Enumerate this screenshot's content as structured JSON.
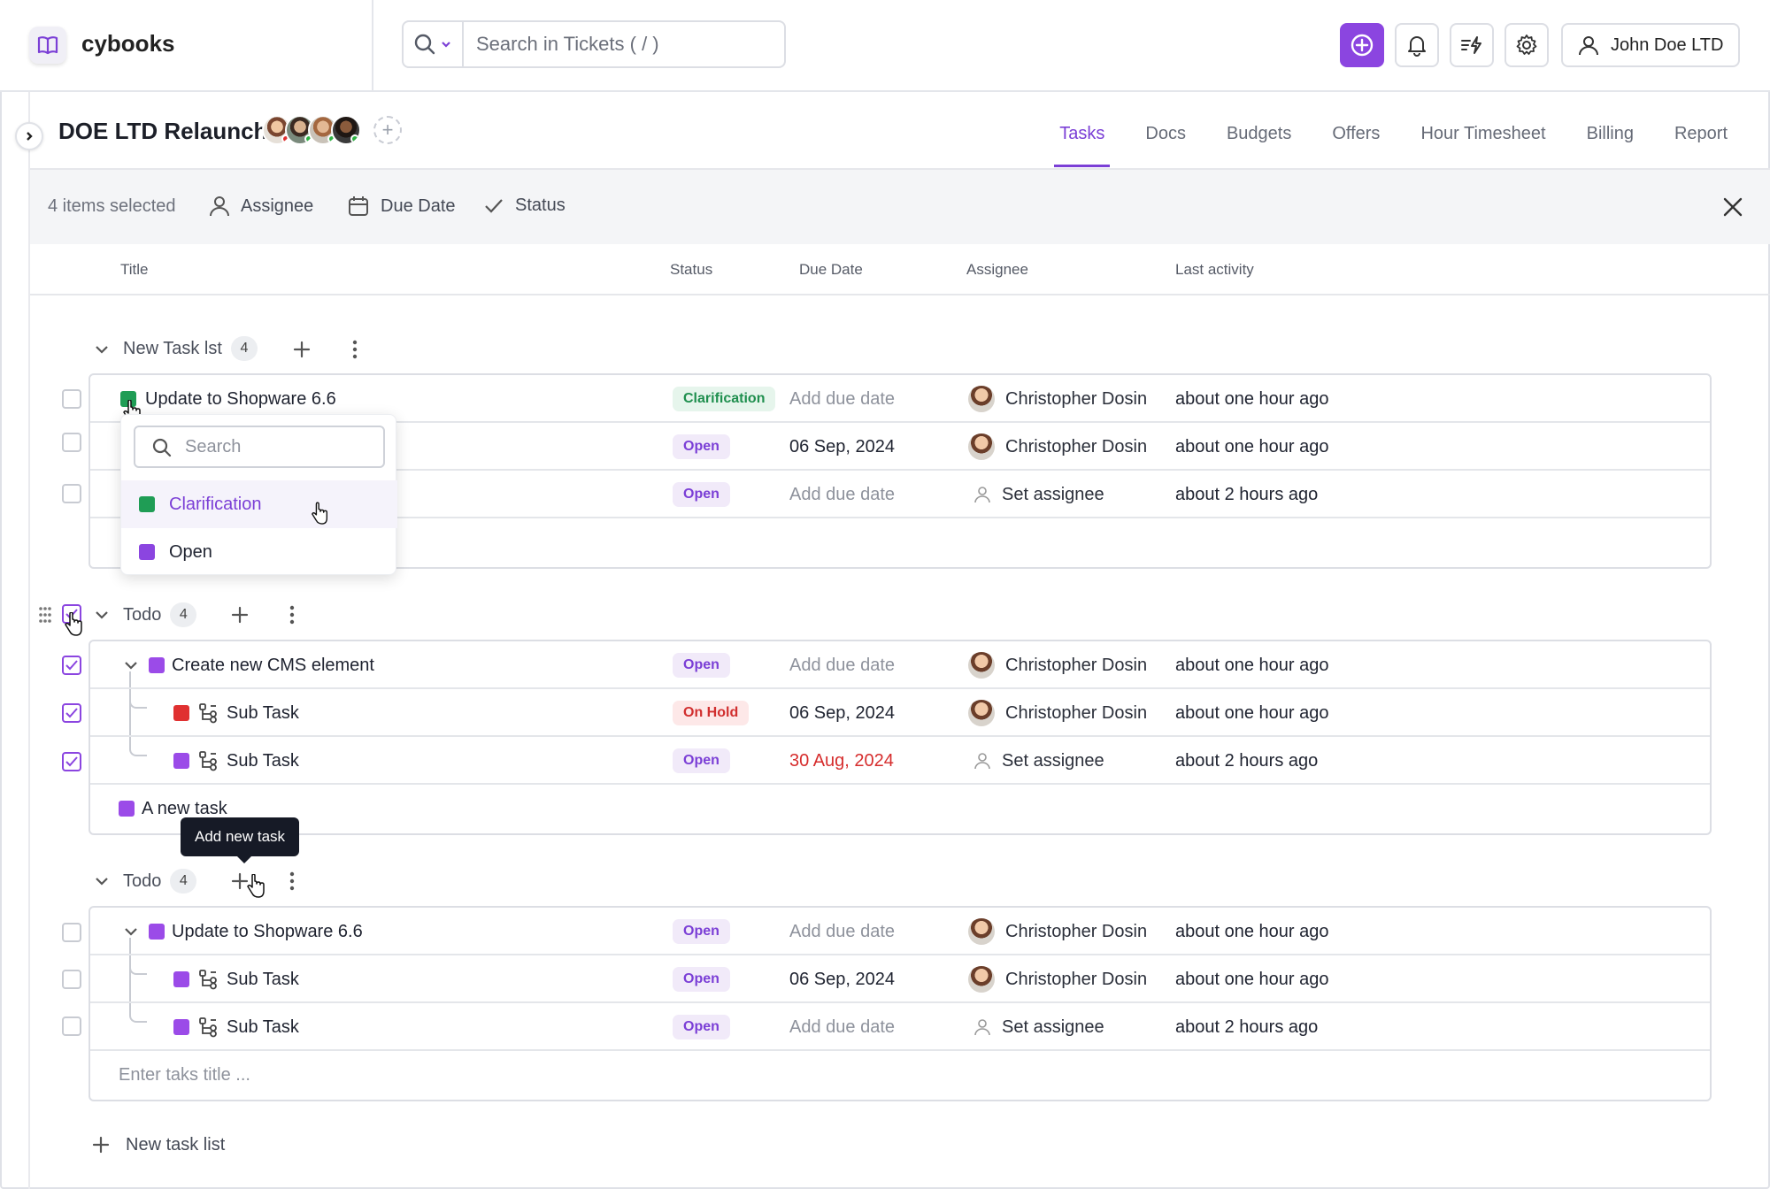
{
  "app": {
    "brand": "cybooks"
  },
  "search": {
    "placeholder": "Search in Tickets ( / )"
  },
  "user": {
    "name": "John Doe LTD"
  },
  "project": {
    "title": "DOE LTD Relaunch",
    "tabs": [
      "Tasks",
      "Docs",
      "Budgets",
      "Offers",
      "Hour Timesheet",
      "Billing",
      "Report"
    ],
    "active_tab": "Tasks"
  },
  "selection": {
    "count_label": "4 items selected",
    "actions": [
      "Assignee",
      "Due Date",
      "Status"
    ]
  },
  "columns": [
    "Title",
    "Status",
    "Due Date",
    "Assignee",
    "Last activity"
  ],
  "colors": {
    "accent": "#8b45e0",
    "status_open": "#9b4be8",
    "status_clarification": "#1f9d55",
    "status_on_hold": "#e03131"
  },
  "groups": [
    {
      "name": "New Task lst",
      "count": "4",
      "rows": [
        {
          "title": "Update to Shopware 6.6",
          "status": "Clarification",
          "due": "Add due date",
          "assignee": "Christopher Dosin",
          "activity": "about one hour ago"
        },
        {
          "title": "",
          "status": "Open",
          "due": "06 Sep, 2024",
          "assignee": "Christopher Dosin",
          "activity": "about one hour ago"
        },
        {
          "title": "",
          "status": "Open",
          "due": "Add due date",
          "assignee": "Set assignee",
          "activity": "about 2 hours ago"
        }
      ]
    },
    {
      "name": "Todo",
      "count": "4",
      "rows": [
        {
          "title": "Create new CMS element",
          "status": "Open",
          "due": "Add due date",
          "assignee": "Christopher Dosin",
          "activity": "about one hour ago"
        },
        {
          "title": "Sub Task",
          "status": "On Hold",
          "due": "06 Sep, 2024",
          "assignee": "Christopher Dosin",
          "activity": "about one hour ago"
        },
        {
          "title": "Sub Task",
          "status": "Open",
          "due": "30 Aug, 2024",
          "assignee": "Set assignee",
          "activity": "about 2 hours ago"
        }
      ],
      "new_task": "A new task"
    },
    {
      "name": "Todo",
      "count": "4",
      "rows": [
        {
          "title": "Update to Shopware 6.6",
          "status": "Open",
          "due": "Add due date",
          "assignee": "Christopher Dosin",
          "activity": "about one hour ago"
        },
        {
          "title": "Sub Task",
          "status": "Open",
          "due": "06 Sep, 2024",
          "assignee": "Christopher Dosin",
          "activity": "about one hour ago"
        },
        {
          "title": "Sub Task",
          "status": "Open",
          "due": "Add due date",
          "assignee": "Set assignee",
          "activity": "about 2 hours ago"
        }
      ],
      "input_placeholder": "Enter taks title ..."
    }
  ],
  "dropdown": {
    "search_placeholder": "Search",
    "options": [
      "Clarification",
      "Open"
    ]
  },
  "tooltip": "Add new task",
  "new_list_label": "New task list"
}
